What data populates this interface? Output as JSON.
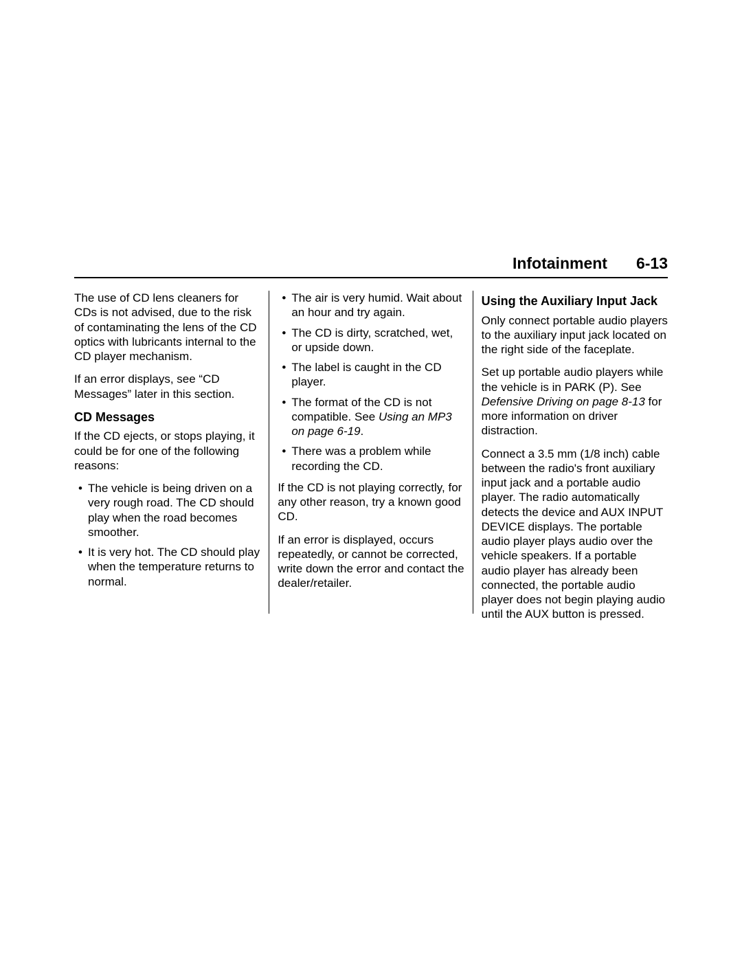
{
  "header": {
    "title": "Infotainment",
    "page": "6-13"
  },
  "col1": {
    "p1": "The use of CD lens cleaners for CDs is not advised, due to the risk of contaminating the lens of the CD optics with lubricants internal to the CD player mechanism.",
    "p2": "If an error displays, see “CD Messages” later in this section.",
    "h1": "CD Messages",
    "p3": "If the CD ejects, or stops playing, it could be for one of the following reasons:",
    "li1": "The vehicle is being driven on a very rough road. The CD should play when the road becomes smoother.",
    "li2": "It is very hot. The CD should play when the temperature returns to normal."
  },
  "col2": {
    "li1": "The air is very humid. Wait about an hour and try again.",
    "li2": "The CD is dirty, scratched, wet, or upside down.",
    "li3": "The label is caught in the CD player.",
    "li4a": "The format of the CD is not compatible. See ",
    "li4b": "Using an MP3 on page 6-19",
    "li4c": ".",
    "li5": "There was a problem while recording the CD.",
    "p1": "If the CD is not playing correctly, for any other reason, try a known good CD.",
    "p2": "If an error is displayed, occurs repeatedly, or cannot be corrected, write down the error and contact the dealer/retailer."
  },
  "col3": {
    "h1": "Using the Auxiliary Input Jack",
    "p1": "Only connect portable audio players to the auxiliary input jack located on the right side of the faceplate.",
    "p2a": "Set up portable audio players while the vehicle is in PARK (P). See ",
    "p2b": "Defensive Driving on page 8-13",
    "p2c": " for more information on driver distraction.",
    "p3": "Connect a 3.5 mm (1/8 inch) cable between the radio's front auxiliary input jack and a portable audio player. The radio automatically detects the device and AUX INPUT DEVICE displays. The portable audio player plays audio over the vehicle speakers. If a portable audio player has already been connected, the portable audio player does not begin playing audio until the AUX button is pressed."
  }
}
